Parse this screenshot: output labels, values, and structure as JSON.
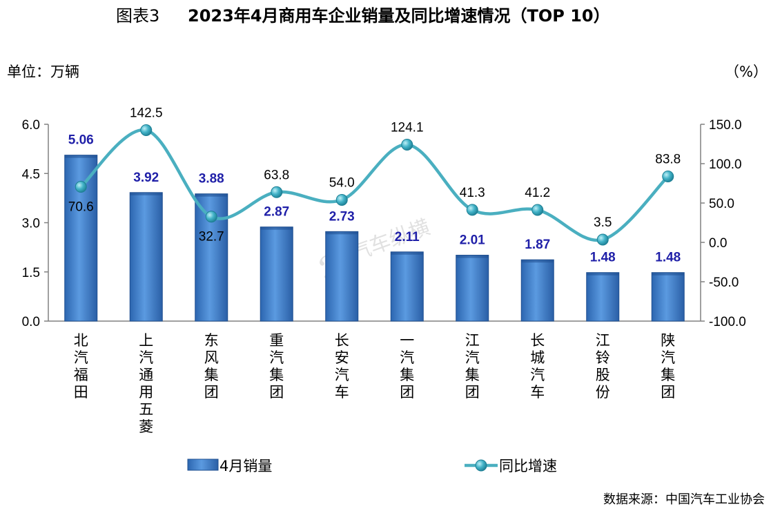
{
  "title": {
    "prefix": "图表3",
    "text": "2023年4月商用车企业销量及同比增速情况（TOP 10）"
  },
  "left_unit": "单位：万辆",
  "right_unit": "（%）",
  "source": "数据来源：中国汽车工业协会",
  "watermark": "汽车纵横",
  "colors": {
    "bar": "#3f7fc9",
    "bar_dark": "#1f4f8f",
    "line": "#4aafc0",
    "marker": "#2a9ab0",
    "bar_label": "#1f1fa8"
  },
  "chart_data": {
    "type": "bar",
    "categories": [
      "北汽福田",
      "上汽通用五菱",
      "东风集团",
      "重汽集团",
      "长安汽车",
      "一汽集团",
      "江汽集团",
      "长城汽车",
      "江铃股份",
      "陕汽集团"
    ],
    "series": [
      {
        "name": "4月销量",
        "type": "bar",
        "axis": "left",
        "values": [
          5.06,
          3.92,
          3.88,
          2.87,
          2.73,
          2.11,
          2.01,
          1.87,
          1.48,
          1.48
        ],
        "labels": [
          "5.06",
          "3.92",
          "3.88",
          "2.87",
          "2.73",
          "2.11",
          "2.01",
          "1.87",
          "1.48",
          "1.48"
        ]
      },
      {
        "name": "同比增速",
        "type": "line",
        "axis": "right",
        "values": [
          70.6,
          142.5,
          32.7,
          63.8,
          54.0,
          124.1,
          41.3,
          41.2,
          3.5,
          83.8
        ],
        "labels": [
          "70.6",
          "142.5",
          "32.7",
          "63.8",
          "54.0",
          "124.1",
          "41.3",
          "41.2",
          "3.5",
          "83.8"
        ]
      }
    ],
    "left_axis": {
      "ylim": [
        0,
        6
      ],
      "ticks": [
        0,
        1.5,
        3,
        4.5,
        6
      ],
      "tick_labels": [
        "0.0",
        "1.5",
        "3.0",
        "4.5",
        "6.0"
      ]
    },
    "right_axis": {
      "ylim": [
        -100,
        150
      ],
      "ticks": [
        -100,
        -50,
        0,
        50,
        100,
        150
      ],
      "tick_labels": [
        "-100.0",
        "-50.0",
        "0.0",
        "50.0",
        "100.0",
        "150.0"
      ]
    },
    "grid": false,
    "legend": "bottom"
  }
}
